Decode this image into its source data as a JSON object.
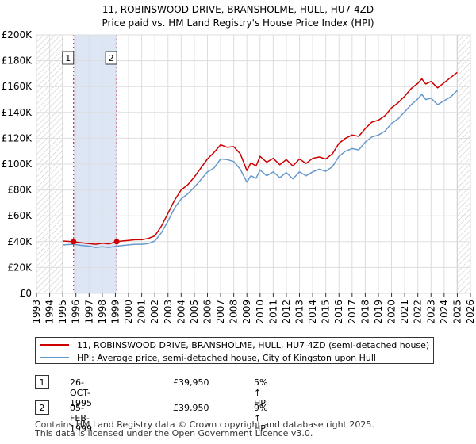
{
  "title_line1": "11, ROBINSWOOD DRIVE, BRANSHOLME, HULL, HU7 4ZD",
  "title_line2": "Price paid vs. HM Land Registry's House Price Index (HPI)",
  "colors": {
    "property": "#cc0000",
    "hpi": "#6699cc",
    "grid": "#dddddd",
    "band": "#dde6f5",
    "hatch": "#cccccc",
    "vline": "#cc0000"
  },
  "legend": {
    "property_label": "11, ROBINSWOOD DRIVE, BRANSHOLME, HULL, HU7 4ZD (semi-detached house)",
    "hpi_label": "HPI: Average price, semi-detached house, City of Kingston upon Hull"
  },
  "transactions": [
    {
      "num": "1",
      "date": "26-OCT-1995",
      "price": "£39,950",
      "hpi": "5% ↑ HPI",
      "year": 1995.82,
      "value": 39950
    },
    {
      "num": "2",
      "date": "05-FEB-1999",
      "price": "£39,950",
      "hpi": "9% ↑ HPI",
      "year": 1999.1,
      "value": 39950
    }
  ],
  "footer_line1": "Contains HM Land Registry data © Crown copyright and database right 2025.",
  "footer_line2": "This data is licensed under the Open Government Licence v3.0.",
  "chart_data": {
    "type": "line",
    "title": "Price paid vs. HM Land Registry's House Price Index (HPI)",
    "xlim": [
      1993,
      2026
    ],
    "ylim": [
      0,
      200000
    ],
    "x_ticks": [
      1993,
      1994,
      1995,
      1996,
      1997,
      1998,
      1999,
      2000,
      2001,
      2002,
      2003,
      2004,
      2005,
      2006,
      2007,
      2008,
      2009,
      2010,
      2011,
      2012,
      2013,
      2014,
      2015,
      2016,
      2017,
      2018,
      2019,
      2020,
      2021,
      2022,
      2023,
      2024,
      2025,
      2026
    ],
    "y_ticks": [
      0,
      20000,
      40000,
      60000,
      80000,
      100000,
      120000,
      140000,
      160000,
      180000,
      200000
    ],
    "y_tick_labels": [
      "£0",
      "£20K",
      "£40K",
      "£60K",
      "£80K",
      "£100K",
      "£120K",
      "£140K",
      "£160K",
      "£180K",
      "£200K"
    ],
    "hatched_before": 1995.0,
    "hatched_after": 2025.0,
    "shaded_band": [
      1995.82,
      1999.1
    ],
    "series": [
      {
        "name": "11, ROBINSWOOD DRIVE, BRANSHOLME, HULL, HU7 4ZD (semi-detached house)",
        "x": [
          1995.0,
          1995.82,
          1996.5,
          1997.0,
          1997.5,
          1998.0,
          1998.5,
          1999.1,
          1999.5,
          2000.0,
          2000.5,
          2001.0,
          2001.5,
          2002.0,
          2002.5,
          2003.0,
          2003.5,
          2004.0,
          2004.5,
          2005.0,
          2005.5,
          2006.0,
          2006.5,
          2007.0,
          2007.5,
          2008.0,
          2008.5,
          2009.0,
          2009.3,
          2009.7,
          2010.0,
          2010.5,
          2011.0,
          2011.5,
          2012.0,
          2012.5,
          2013.0,
          2013.5,
          2014.0,
          2014.5,
          2015.0,
          2015.5,
          2016.0,
          2016.5,
          2017.0,
          2017.5,
          2018.0,
          2018.5,
          2019.0,
          2019.5,
          2020.0,
          2020.5,
          2021.0,
          2021.5,
          2022.0,
          2022.3,
          2022.6,
          2023.0,
          2023.5,
          2024.0,
          2024.5,
          2025.0
        ],
        "values": [
          40500,
          39950,
          39000,
          38500,
          38000,
          38800,
          38300,
          39950,
          40500,
          41000,
          41500,
          41500,
          42500,
          44500,
          52000,
          62000,
          72000,
          80000,
          84000,
          90000,
          97000,
          104000,
          109000,
          115000,
          113000,
          113500,
          108000,
          95000,
          101000,
          98500,
          106000,
          101500,
          104500,
          99500,
          103500,
          98500,
          104000,
          100500,
          104500,
          105500,
          104000,
          108000,
          116000,
          120000,
          122500,
          121500,
          127500,
          132500,
          134000,
          137500,
          143500,
          147500,
          152500,
          158500,
          162500,
          166000,
          162000,
          164000,
          159000,
          163000,
          167000,
          171000
        ]
      },
      {
        "name": "HPI: Average price, semi-detached house, City of Kingston upon Hull",
        "x": [
          1995.0,
          1995.82,
          1996.5,
          1997.0,
          1997.5,
          1998.0,
          1998.5,
          1999.1,
          1999.5,
          2000.0,
          2000.5,
          2001.0,
          2001.5,
          2002.0,
          2002.5,
          2003.0,
          2003.5,
          2004.0,
          2004.5,
          2005.0,
          2005.5,
          2006.0,
          2006.5,
          2007.0,
          2007.5,
          2008.0,
          2008.5,
          2009.0,
          2009.3,
          2009.7,
          2010.0,
          2010.5,
          2011.0,
          2011.5,
          2012.0,
          2012.5,
          2013.0,
          2013.5,
          2014.0,
          2014.5,
          2015.0,
          2015.5,
          2016.0,
          2016.5,
          2017.0,
          2017.5,
          2018.0,
          2018.5,
          2019.0,
          2019.5,
          2020.0,
          2020.5,
          2021.0,
          2021.5,
          2022.0,
          2022.3,
          2022.6,
          2023.0,
          2023.5,
          2024.0,
          2024.5,
          2025.0
        ],
        "values": [
          37500,
          38000,
          37000,
          36500,
          35500,
          36000,
          35500,
          36500,
          37000,
          37500,
          38000,
          38000,
          38500,
          40500,
          47000,
          56000,
          66000,
          73000,
          77000,
          82000,
          88000,
          94000,
          97000,
          104000,
          103500,
          102000,
          96000,
          86000,
          91000,
          89000,
          95500,
          91000,
          94000,
          89500,
          93500,
          88500,
          94000,
          91000,
          94000,
          96000,
          94500,
          98000,
          106000,
          110000,
          112000,
          111000,
          117000,
          121000,
          122500,
          125500,
          131500,
          135000,
          140500,
          146000,
          150500,
          154000,
          150000,
          151000,
          146000,
          149000,
          152000,
          157000
        ]
      }
    ],
    "markers": [
      {
        "label": "1",
        "x": 1995.82,
        "y": 39950
      },
      {
        "label": "2",
        "x": 1999.1,
        "y": 39950
      }
    ]
  }
}
